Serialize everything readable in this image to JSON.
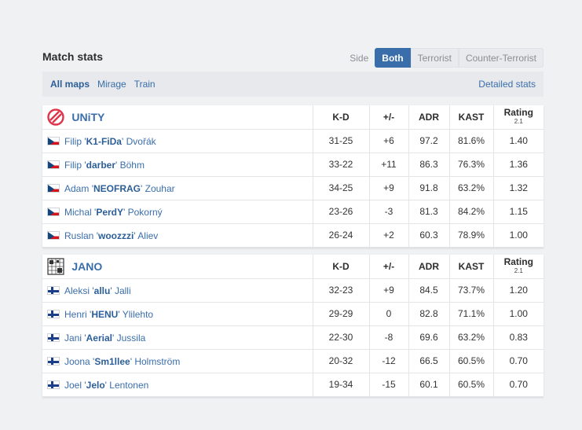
{
  "header": {
    "title": "Match stats",
    "side_label": "Side",
    "side_options": [
      "Both",
      "Terrorist",
      "Counter-Terrorist"
    ]
  },
  "maps": {
    "items": [
      "All maps",
      "Mirage",
      "Train"
    ],
    "detailed_label": "Detailed stats"
  },
  "columns": {
    "kd": "K-D",
    "pm": "+/-",
    "adr": "ADR",
    "kast": "KAST",
    "rating": "Rating",
    "rating_version": "2.1"
  },
  "teams": [
    {
      "name": "UNiTY",
      "flag": "CZ",
      "players": [
        {
          "first": "Filip",
          "nick": "K1-FiDa",
          "last": "Dvořák",
          "kd": "31-25",
          "pm": "+6",
          "adr": "97.2",
          "kast": "81.6%",
          "rating": "1.40"
        },
        {
          "first": "Filip",
          "nick": "darber",
          "last": "Böhm",
          "kd": "33-22",
          "pm": "+11",
          "adr": "86.3",
          "kast": "76.3%",
          "rating": "1.36"
        },
        {
          "first": "Adam",
          "nick": "NEOFRAG",
          "last": "Zouhar",
          "kd": "34-25",
          "pm": "+9",
          "adr": "91.8",
          "kast": "63.2%",
          "rating": "1.32"
        },
        {
          "first": "Michal",
          "nick": "PerdY",
          "last": "Pokorný",
          "kd": "23-26",
          "pm": "-3",
          "adr": "81.3",
          "kast": "84.2%",
          "rating": "1.15"
        },
        {
          "first": "Ruslan",
          "nick": "woozzzi",
          "last": "Aliev",
          "kd": "26-24",
          "pm": "+2",
          "adr": "60.3",
          "kast": "78.9%",
          "rating": "1.00"
        }
      ]
    },
    {
      "name": "JANO",
      "flag": "FI",
      "players": [
        {
          "first": "Aleksi",
          "nick": "allu",
          "last": "Jalli",
          "kd": "32-23",
          "pm": "+9",
          "adr": "84.5",
          "kast": "73.7%",
          "rating": "1.20"
        },
        {
          "first": "Henri",
          "nick": "HENU",
          "last": "Ylilehto",
          "kd": "29-29",
          "pm": "0",
          "adr": "82.8",
          "kast": "71.1%",
          "rating": "1.00"
        },
        {
          "first": "Jani",
          "nick": "Aerial",
          "last": "Jussila",
          "kd": "22-30",
          "pm": "-8",
          "adr": "69.6",
          "kast": "63.2%",
          "rating": "0.83"
        },
        {
          "first": "Joona",
          "nick": "Sm1llee",
          "last": "Holmström",
          "kd": "20-32",
          "pm": "-12",
          "adr": "66.5",
          "kast": "60.5%",
          "rating": "0.70"
        },
        {
          "first": "Joel",
          "nick": "Jelo",
          "last": "Lentonen",
          "kd": "19-34",
          "pm": "-15",
          "adr": "60.1",
          "kast": "60.5%",
          "rating": "0.70"
        }
      ]
    }
  ],
  "colors": {
    "accent": "#3a6eab",
    "positive": "#2e9c3a",
    "negative": "#d13a3a",
    "unity_logo": "#e0344c"
  }
}
